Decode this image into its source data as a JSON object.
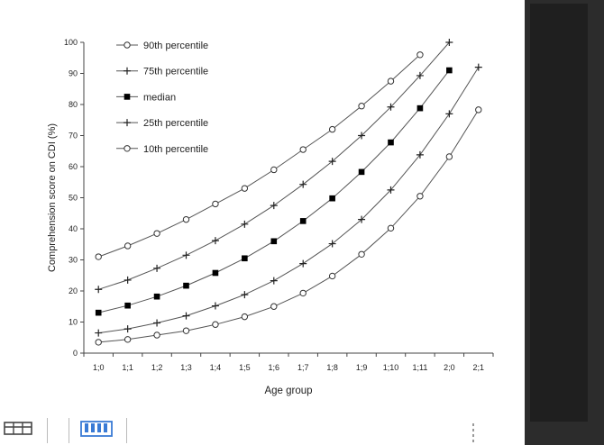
{
  "chart_data": {
    "type": "line",
    "xlabel": "Age group",
    "ylabel": "Comprehension score on CDI (%)",
    "ylim": [
      0,
      100
    ],
    "yticks": [
      0,
      10,
      20,
      30,
      40,
      50,
      60,
      70,
      80,
      90,
      100
    ],
    "categories": [
      "1;0",
      "1;1",
      "1;2",
      "1;3",
      "1;4",
      "1;5",
      "1;6",
      "1;7",
      "1;8",
      "1;9",
      "1;10",
      "1;11",
      "2;0",
      "2;1"
    ],
    "legend_position": "top-left",
    "grid": false,
    "series": [
      {
        "name": "90th percentile",
        "marker": "open-circle",
        "values": [
          31,
          34.5,
          38.5,
          43,
          48,
          53,
          59,
          65.5,
          72,
          79.5,
          87.5,
          96,
          null,
          null
        ]
      },
      {
        "name": "75th percentile",
        "marker": "plus",
        "values": [
          20.5,
          23.5,
          27.3,
          31.5,
          36.2,
          41.5,
          47.5,
          54.3,
          61.7,
          70,
          79.2,
          89.3,
          100,
          null
        ]
      },
      {
        "name": "median",
        "marker": "filled-square",
        "values": [
          13,
          15.3,
          18.2,
          21.7,
          25.8,
          30.5,
          36,
          42.5,
          49.8,
          58.3,
          67.8,
          78.8,
          91,
          null
        ]
      },
      {
        "name": "25th percentile",
        "marker": "plus",
        "values": [
          6.5,
          7.8,
          9.7,
          12,
          15.2,
          18.8,
          23.3,
          28.8,
          35.2,
          43,
          52.5,
          63.8,
          77,
          92
        ]
      },
      {
        "name": "10th percentile",
        "marker": "open-circle",
        "values": [
          3.5,
          4.4,
          5.8,
          7.2,
          9.2,
          11.7,
          15,
          19.3,
          24.8,
          31.8,
          40.2,
          50.5,
          63.2,
          78.3
        ]
      }
    ]
  },
  "ui": {
    "toolbar_icons": [
      "table-icon",
      "column-chart-icon",
      "drag-handle-icon"
    ],
    "accent": "#3a7bd5",
    "panel_color": "#2c2c2c"
  }
}
